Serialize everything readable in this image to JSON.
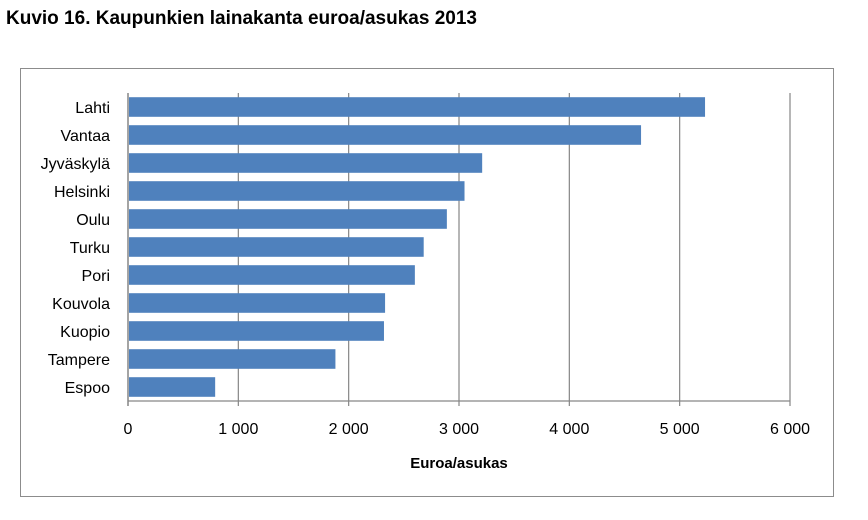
{
  "title": "Kuvio 16. Kaupunkien lainakanta euroa/asukas 2013",
  "chart_data": {
    "type": "bar",
    "orientation": "horizontal",
    "categories": [
      "Lahti",
      "Vantaa",
      "Jyväskylä",
      "Helsinki",
      "Oulu",
      "Turku",
      "Pori",
      "Kouvola",
      "Kuopio",
      "Tampere",
      "Espoo"
    ],
    "values": [
      5230,
      4650,
      3210,
      3050,
      2890,
      2680,
      2600,
      2330,
      2320,
      1880,
      790
    ],
    "xlabel": "Euroa/asukas",
    "ylabel": "",
    "xlim": [
      0,
      6000
    ],
    "xticks": [
      0,
      1000,
      2000,
      3000,
      4000,
      5000,
      6000
    ],
    "xtick_labels": [
      "0",
      "1 000",
      "2 000",
      "3 000",
      "4 000",
      "5 000",
      "6 000"
    ],
    "grid": "vertical",
    "legend": "none",
    "bar_color": "#4f81bd",
    "grid_color": "#868686"
  }
}
